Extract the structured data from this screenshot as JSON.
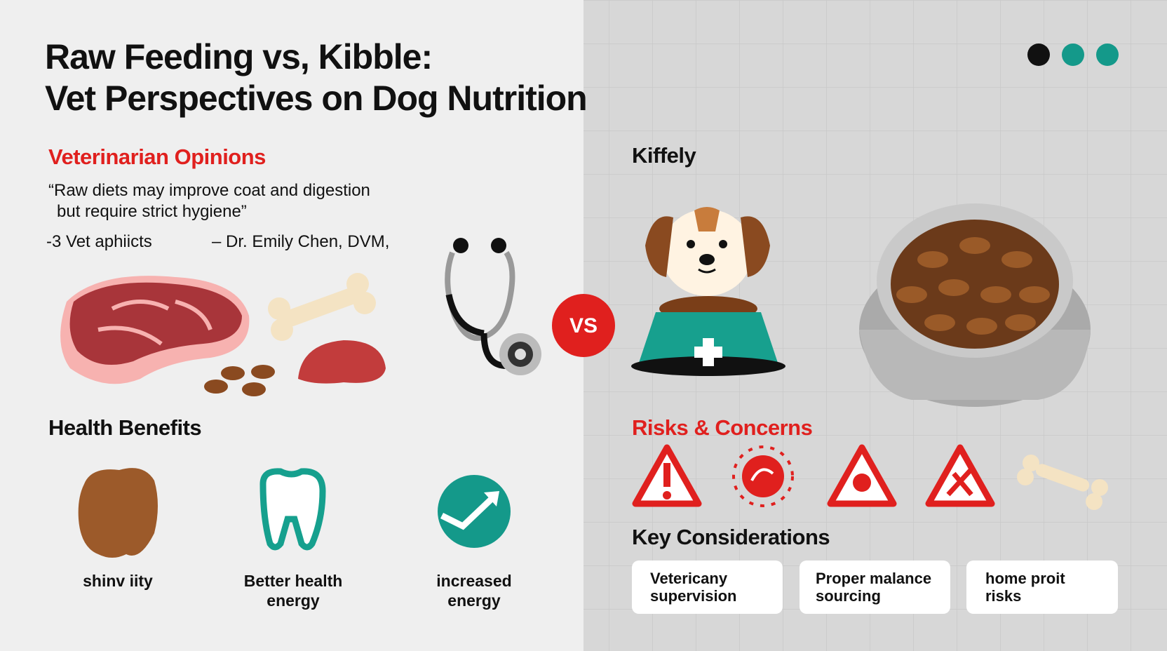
{
  "header": {
    "title": [
      "Raw Feeding vs, Kibble:",
      "Vet Perspectives on Dog Nutrition"
    ]
  },
  "opinions": {
    "heading": "Veterinarian Opinions",
    "quote": [
      "“Raw diets may improve coat and digestion",
      "but require strict hygiene”"
    ],
    "note": "-3 Vet aphiicts",
    "attribution": "– Dr. Emily Chen, DVM,"
  },
  "vs": "VS",
  "kibble": {
    "heading": "Kiffely"
  },
  "benefits": {
    "heading": "Health Benefits",
    "items": [
      [
        "shinv iity"
      ],
      [
        "Better health",
        "energy"
      ],
      [
        "increased",
        "energy"
      ]
    ]
  },
  "risks": {
    "heading": "Risks & Concerns"
  },
  "considerations": {
    "heading": "Key Considerations",
    "cards": [
      [
        "Vetericany",
        "supervision"
      ],
      [
        "Proper malance",
        "sourcing"
      ],
      [
        "home proit",
        "risks"
      ]
    ]
  }
}
